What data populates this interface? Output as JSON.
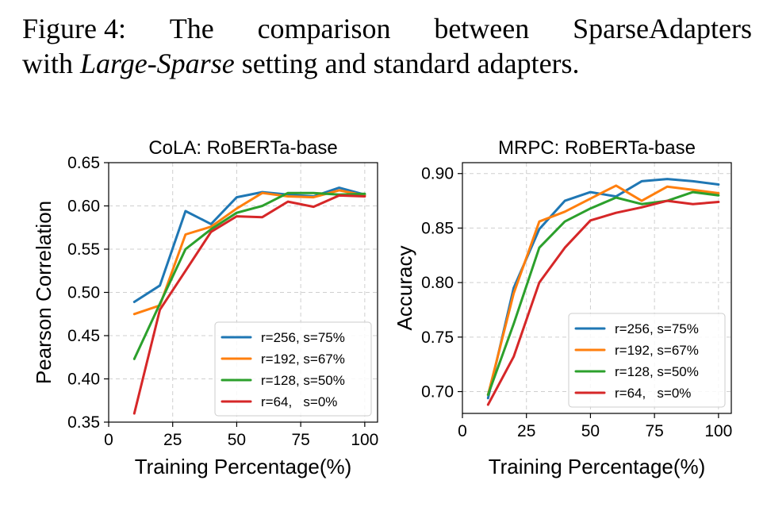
{
  "caption": {
    "prefix": "Figure 4:",
    "line1_words": [
      "The",
      "comparison",
      "between",
      "SparseAdapters"
    ],
    "line2_pre": "with",
    "line2_italic": "Large-Sparse",
    "line2_post": "setting and standard adapters."
  },
  "chart_data": [
    {
      "type": "line",
      "title": "CoLA: RoBERTa-base",
      "xlabel": "Training Percentage(%)",
      "ylabel": "Pearson Correlation",
      "xlim": [
        0,
        105
      ],
      "ylim": [
        0.35,
        0.65
      ],
      "xticks": [
        0,
        25,
        50,
        75,
        100
      ],
      "yticks": [
        0.35,
        0.4,
        0.45,
        0.5,
        0.55,
        0.6,
        0.65
      ],
      "ytick_labels": [
        "0.35",
        "0.40",
        "0.45",
        "0.50",
        "0.55",
        "0.60",
        "0.65"
      ],
      "grid": true,
      "legend_position": "lower-right",
      "x": [
        10,
        20,
        30,
        40,
        50,
        60,
        70,
        80,
        90,
        100
      ],
      "series": [
        {
          "name": "r=256, s=75%",
          "color": "#1f77b4",
          "values": [
            0.489,
            0.508,
            0.594,
            0.579,
            0.61,
            0.616,
            0.613,
            0.611,
            0.621,
            0.613
          ]
        },
        {
          "name": "r=192, s=67%",
          "color": "#ff7f0e",
          "values": [
            0.475,
            0.485,
            0.567,
            0.576,
            0.597,
            0.615,
            0.611,
            0.61,
            0.618,
            0.612
          ]
        },
        {
          "name": "r=128, s=50%",
          "color": "#2ca02c",
          "values": [
            0.423,
            0.487,
            0.55,
            0.573,
            0.592,
            0.6,
            0.615,
            0.615,
            0.613,
            0.614
          ]
        },
        {
          "name": "r=64,   s=0%",
          "color": "#d62728",
          "values": [
            0.36,
            0.48,
            0.525,
            0.57,
            0.588,
            0.587,
            0.605,
            0.599,
            0.612,
            0.611
          ]
        }
      ]
    },
    {
      "type": "line",
      "title": "MRPC: RoBERTa-base",
      "xlabel": "Training Percentage(%)",
      "ylabel": "Accuracy",
      "xlim": [
        0,
        105
      ],
      "ylim": [
        0.68,
        0.91
      ],
      "xticks": [
        0,
        25,
        50,
        75,
        100
      ],
      "yticks": [
        0.7,
        0.75,
        0.8,
        0.85,
        0.9
      ],
      "ytick_labels": [
        "0.70",
        "0.75",
        "0.80",
        "0.85",
        "0.90"
      ],
      "grid": true,
      "legend_position": "lower-right",
      "x": [
        10,
        20,
        30,
        40,
        50,
        60,
        70,
        80,
        90,
        100
      ],
      "series": [
        {
          "name": "r=256, s=75%",
          "color": "#1f77b4",
          "values": [
            0.694,
            0.795,
            0.849,
            0.875,
            0.883,
            0.879,
            0.893,
            0.895,
            0.893,
            0.89
          ]
        },
        {
          "name": "r=192, s=67%",
          "color": "#ff7f0e",
          "values": [
            0.697,
            0.79,
            0.856,
            0.865,
            0.877,
            0.889,
            0.875,
            0.888,
            0.885,
            0.882
          ]
        },
        {
          "name": "r=128, s=50%",
          "color": "#2ca02c",
          "values": [
            0.697,
            0.762,
            0.832,
            0.856,
            0.868,
            0.878,
            0.872,
            0.875,
            0.883,
            0.88
          ]
        },
        {
          "name": "r=64,   s=0%",
          "color": "#d62728",
          "values": [
            0.688,
            0.732,
            0.8,
            0.832,
            0.857,
            0.864,
            0.869,
            0.875,
            0.872,
            0.874
          ]
        }
      ]
    }
  ]
}
